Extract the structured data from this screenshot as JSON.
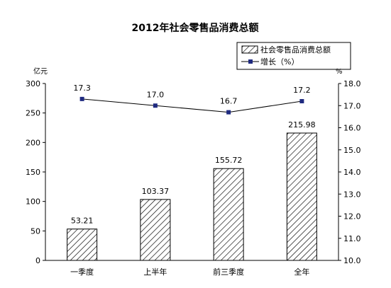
{
  "chart_data": {
    "type": "bar",
    "title": "2012年社会零售品消费总额",
    "categories": [
      "一季度",
      "上半年",
      "前三季度",
      "全年"
    ],
    "series": [
      {
        "name": "社会零售品消费总额",
        "type": "bar",
        "axis": "left",
        "values": [
          53.21,
          103.37,
          155.72,
          215.98
        ],
        "labels": [
          "53.21",
          "103.37",
          "155.72",
          "215.98"
        ]
      },
      {
        "name": "增长（%）",
        "type": "line",
        "axis": "right",
        "values": [
          17.3,
          17.0,
          16.7,
          17.2
        ],
        "labels": [
          "17.3",
          "17.0",
          "16.7",
          "17.2"
        ]
      }
    ],
    "y_left": {
      "unit": "亿元",
      "ylim": [
        0,
        300
      ],
      "ticks": [
        0,
        50,
        100,
        150,
        200,
        250,
        300
      ],
      "tick_labels": [
        "0",
        "50",
        "100",
        "150",
        "200",
        "250",
        "300"
      ]
    },
    "y_right": {
      "unit": "%",
      "ylim": [
        10.0,
        18.0
      ],
      "ticks": [
        10.0,
        11.0,
        12.0,
        13.0,
        14.0,
        15.0,
        16.0,
        17.0,
        18.0
      ],
      "tick_labels": [
        "10.0",
        "11.0",
        "12.0",
        "13.0",
        "14.0",
        "15.0",
        "16.0",
        "17.0",
        "18.0"
      ]
    },
    "legend_position": "top-right",
    "grid": false,
    "colors": {
      "bar_fill": "#ffffff",
      "bar_hatch": "#000000",
      "line": "#000000",
      "marker": "#1f2a80"
    }
  }
}
